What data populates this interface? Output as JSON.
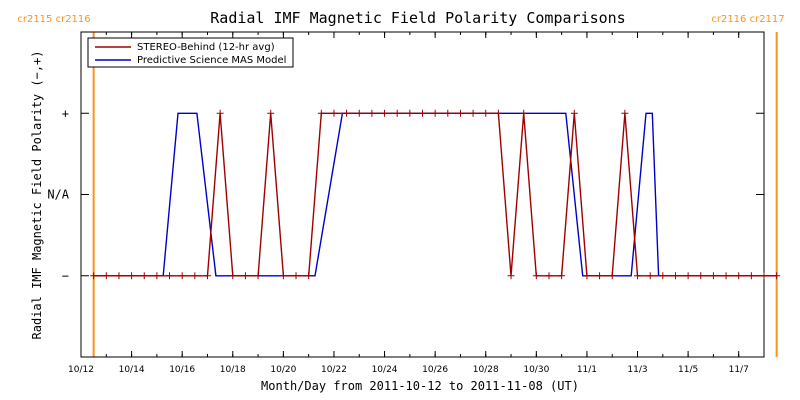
{
  "colors": {
    "stereo": "#a00000",
    "model": "#0000cc",
    "rotation": "#f7941d",
    "axis": "#000000"
  },
  "chart_data": {
    "type": "line",
    "title": "Radial IMF Magnetic Field Polarity Comparisons",
    "xlabel": "Month/Day from 2011-10-12 to 2011-11-08 (UT)",
    "ylabel": "Radial IMF Magnetic Field Polarity (−,+)",
    "x_tick_labels": [
      "10/12",
      "10/14",
      "10/16",
      "10/18",
      "10/20",
      "10/22",
      "10/24",
      "10/26",
      "10/28",
      "10/30",
      "11/1",
      "11/3",
      "11/5",
      "11/7"
    ],
    "x_tick_dates": [
      "2011-10-12",
      "2011-10-14",
      "2011-10-16",
      "2011-10-18",
      "2011-10-20",
      "2011-10-22",
      "2011-10-24",
      "2011-10-26",
      "2011-10-28",
      "2011-10-30",
      "2011-11-01",
      "2011-11-03",
      "2011-11-05",
      "2011-11-07"
    ],
    "xlim": [
      "2011-10-12",
      "2011-11-08"
    ],
    "y_tick_labels": [
      "−",
      "N/A",
      "+"
    ],
    "y_tick_values": [
      -1,
      0,
      1
    ],
    "ylim": [
      -2,
      2
    ],
    "grid": false,
    "legend_position": "top-left",
    "rotation_markers": [
      {
        "date": "2011-10-12 12:00",
        "labels": [
          "cr2115",
          "cr2116"
        ],
        "side": "left"
      },
      {
        "date": "2011-11-08 12:00",
        "labels": [
          "cr2116",
          "cr2117"
        ],
        "side": "right"
      }
    ],
    "series": [
      {
        "name": "STEREO-Behind (12-hr avg)",
        "marker": "+",
        "x": [
          "2011-10-12 12:00",
          "2011-10-13 00:00",
          "2011-10-13 12:00",
          "2011-10-14 00:00",
          "2011-10-14 12:00",
          "2011-10-15 00:00",
          "2011-10-15 12:00",
          "2011-10-16 00:00",
          "2011-10-16 12:00",
          "2011-10-17 00:00",
          "2011-10-17 12:00",
          "2011-10-18 00:00",
          "2011-10-18 12:00",
          "2011-10-19 00:00",
          "2011-10-19 12:00",
          "2011-10-20 00:00",
          "2011-10-20 12:00",
          "2011-10-21 00:00",
          "2011-10-21 12:00",
          "2011-10-22 00:00",
          "2011-10-22 12:00",
          "2011-10-23 00:00",
          "2011-10-23 12:00",
          "2011-10-24 00:00",
          "2011-10-24 12:00",
          "2011-10-25 00:00",
          "2011-10-25 12:00",
          "2011-10-26 00:00",
          "2011-10-26 12:00",
          "2011-10-27 00:00",
          "2011-10-27 12:00",
          "2011-10-28 00:00",
          "2011-10-28 12:00",
          "2011-10-29 00:00",
          "2011-10-29 12:00",
          "2011-10-30 00:00",
          "2011-10-30 12:00",
          "2011-10-31 00:00",
          "2011-10-31 12:00",
          "2011-11-01 00:00",
          "2011-11-01 12:00",
          "2011-11-02 00:00",
          "2011-11-02 12:00",
          "2011-11-03 00:00",
          "2011-11-03 12:00",
          "2011-11-04 00:00",
          "2011-11-04 12:00",
          "2011-11-05 00:00",
          "2011-11-05 12:00",
          "2011-11-06 00:00",
          "2011-11-06 12:00",
          "2011-11-07 00:00",
          "2011-11-07 12:00",
          "2011-11-08 00:00",
          "2011-11-08 12:00"
        ],
        "y": [
          -1,
          -1,
          -1,
          -1,
          -1,
          -1,
          -1,
          -1,
          -1,
          -1,
          1,
          -1,
          -1,
          -1,
          1,
          -1,
          -1,
          -1,
          1,
          1,
          1,
          1,
          1,
          1,
          1,
          1,
          1,
          1,
          1,
          1,
          1,
          1,
          1,
          -1,
          1,
          -1,
          -1,
          -1,
          1,
          -1,
          -1,
          -1,
          1,
          -1,
          -1,
          -1,
          -1,
          -1,
          -1,
          -1,
          -1,
          -1,
          -1,
          -1,
          -1
        ]
      },
      {
        "name": "Predictive Science MAS Model",
        "marker": "none",
        "x": [
          "2011-10-12 12:00",
          "2011-10-15 06:00",
          "2011-10-15 20:00",
          "2011-10-16 14:00",
          "2011-10-17 08:00",
          "2011-10-21 06:00",
          "2011-10-22 08:00",
          "2011-10-31 04:00",
          "2011-10-31 20:00",
          "2011-11-02 18:00",
          "2011-11-03 08:00",
          "2011-11-03 14:00",
          "2011-11-03 20:00",
          "2011-11-04 12:00",
          "2011-11-08 12:00"
        ],
        "y": [
          -1,
          -1,
          1,
          1,
          -1,
          -1,
          1,
          1,
          -1,
          -1,
          1,
          1,
          -1,
          -1,
          -1
        ]
      }
    ]
  }
}
